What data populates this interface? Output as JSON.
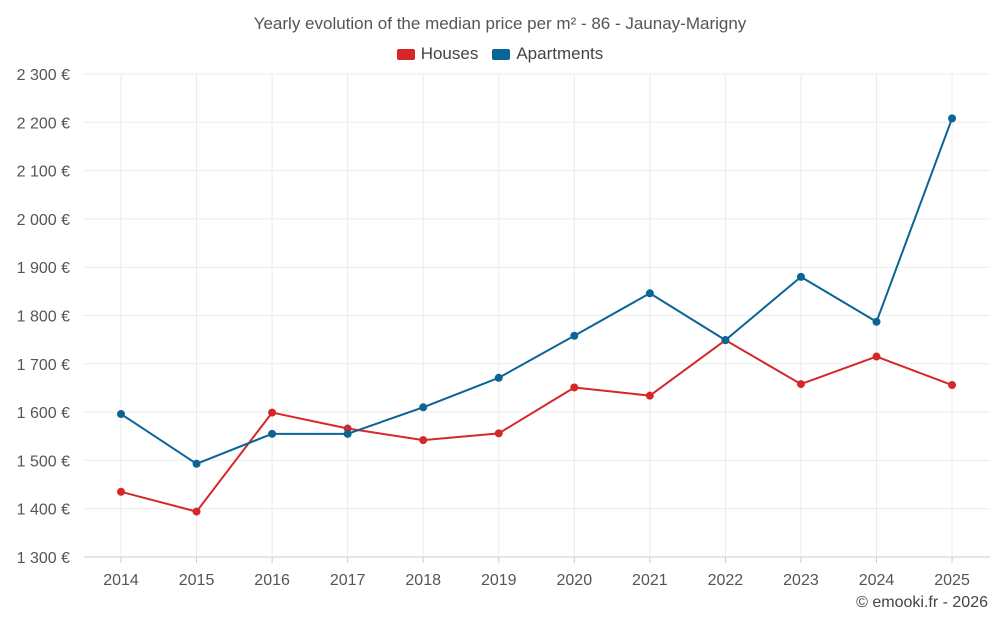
{
  "chart_data": {
    "type": "line",
    "title": "Yearly evolution of the median price per m² - 86 - Jaunay-Marigny",
    "categories": [
      "2014",
      "2015",
      "2016",
      "2017",
      "2018",
      "2019",
      "2020",
      "2021",
      "2022",
      "2023",
      "2024",
      "2025"
    ],
    "series": [
      {
        "name": "Houses",
        "color": "#d62728",
        "values": [
          1435,
          1394,
          1599,
          1566,
          1542,
          1556,
          1651,
          1634,
          1749,
          1658,
          1715,
          1656
        ]
      },
      {
        "name": "Apartments",
        "color": "#0b6496",
        "values": [
          1596,
          1493,
          1555,
          1555,
          1610,
          1671,
          1758,
          1846,
          1749,
          1880,
          1787,
          2208
        ]
      }
    ],
    "y_ticks": [
      1300,
      1400,
      1500,
      1600,
      1700,
      1800,
      1900,
      2000,
      2100,
      2200,
      2300
    ],
    "y_tick_labels": [
      "1 300 €",
      "1 400 €",
      "1 500 €",
      "1 600 €",
      "1 700 €",
      "1 800 €",
      "1 900 €",
      "2 000 €",
      "2 100 €",
      "2 200 €",
      "2 300 €"
    ],
    "ylim": [
      1300,
      2300
    ],
    "xlabel": "",
    "ylabel": "",
    "legend_position": "top-center",
    "grid": true
  },
  "credit": "© emooki.fr - 2026"
}
